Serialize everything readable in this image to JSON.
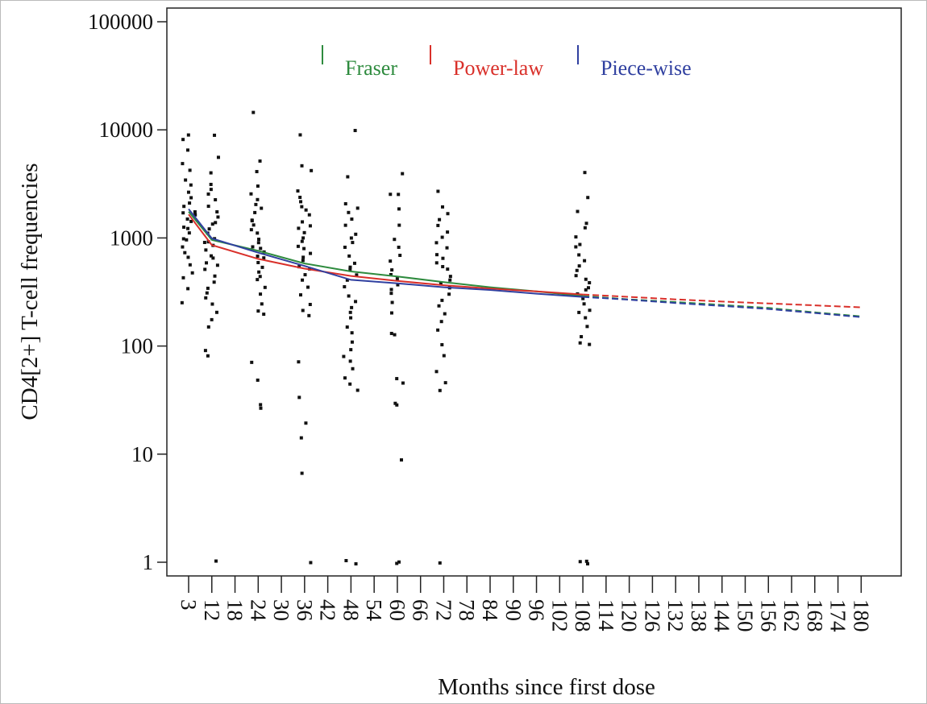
{
  "chart_data": {
    "type": "scatter",
    "title": "",
    "xlabel": "Months since first dose",
    "ylabel": "CD4[2+] T-cell frequencies",
    "x_scale": "categorical",
    "y_scale": "log",
    "ylim": [
      1,
      100000
    ],
    "x_ticks": [
      "3",
      "12",
      "18",
      "24",
      "30",
      "36",
      "42",
      "48",
      "54",
      "60",
      "66",
      "72",
      "78",
      "84",
      "90",
      "96",
      "102",
      "108",
      "114",
      "120",
      "126",
      "132",
      "138",
      "144",
      "150",
      "156",
      "162",
      "168",
      "174",
      "180"
    ],
    "y_ticks": [
      "1",
      "10",
      "100",
      "1000",
      "10000",
      "100000"
    ],
    "y_tick_values": [
      1,
      10,
      100,
      1000,
      10000,
      100000
    ],
    "grid": false,
    "legend": {
      "placement": "top",
      "entries": [
        {
          "name": "Fraser",
          "color": "#2e8b3e"
        },
        {
          "name": "Power-law",
          "color": "#d9302a"
        },
        {
          "name": "Piece-wise",
          "color": "#3040a0"
        }
      ]
    },
    "scatter_groups": [
      {
        "month": 3,
        "values": [
          9000,
          8000,
          6500,
          5000,
          4200,
          3500,
          3000,
          2600,
          2300,
          2100,
          1900,
          1800,
          1700,
          1600,
          1500,
          1400,
          1300,
          1200,
          1100,
          1000,
          950,
          850,
          750,
          650,
          560,
          480,
          420,
          330,
          250
        ]
      },
      {
        "month": 12,
        "values": [
          9000,
          5500,
          4000,
          3200,
          2800,
          2500,
          2200,
          2000,
          1800,
          1600,
          1400,
          1300,
          1200,
          1100,
          1000,
          950,
          900,
          850,
          800,
          700,
          650,
          600,
          550,
          500,
          450,
          400,
          350,
          300,
          270,
          250,
          200,
          170,
          150,
          90,
          80,
          1
        ]
      },
      {
        "month": 24,
        "values": [
          14000,
          5000,
          4000,
          3000,
          2600,
          2300,
          2100,
          1900,
          1700,
          1500,
          1400,
          1300,
          1200,
          1100,
          1000,
          900,
          850,
          800,
          750,
          700,
          650,
          600,
          550,
          500,
          450,
          400,
          350,
          300,
          250,
          210,
          200,
          70,
          50,
          28,
          26
        ]
      },
      {
        "month": 36,
        "values": [
          9000,
          4500,
          4200,
          2700,
          2400,
          2200,
          2000,
          1800,
          1600,
          1400,
          1300,
          1200,
          1100,
          1000,
          900,
          850,
          800,
          700,
          650,
          600,
          550,
          500,
          450,
          400,
          350,
          300,
          250,
          220,
          190,
          70,
          34,
          20,
          14,
          6.5,
          1
        ]
      },
      {
        "month": 48,
        "values": [
          10000,
          3700,
          2100,
          1900,
          1700,
          1500,
          1300,
          1100,
          1000,
          900,
          800,
          700,
          600,
          550,
          500,
          450,
          400,
          350,
          300,
          260,
          220,
          200,
          180,
          150,
          130,
          110,
          90,
          80,
          70,
          60,
          50,
          45,
          40,
          1,
          1
        ]
      },
      {
        "month": 60,
        "values": [
          4000,
          2600,
          2500,
          1800,
          1300,
          1000,
          800,
          700,
          600,
          500,
          450,
          420,
          380,
          330,
          300,
          250,
          200,
          130,
          130,
          50,
          46,
          30,
          28,
          8.7,
          1,
          1
        ]
      },
      {
        "month": 72,
        "values": [
          2700,
          1900,
          1700,
          1500,
          1300,
          1100,
          1000,
          900,
          800,
          700,
          650,
          600,
          550,
          500,
          450,
          400,
          380,
          350,
          300,
          270,
          240,
          200,
          170,
          140,
          100,
          80,
          60,
          45,
          40,
          1
        ]
      },
      {
        "month": 108,
        "values": [
          4000,
          2300,
          1700,
          1400,
          1200,
          1000,
          900,
          800,
          700,
          600,
          550,
          500,
          450,
          420,
          380,
          350,
          320,
          300,
          280,
          250,
          220,
          200,
          180,
          150,
          120,
          110,
          100,
          1,
          1,
          1
        ]
      }
    ],
    "series": [
      {
        "name": "Fraser",
        "color": "#2e8b3e",
        "x": [
          3,
          12,
          24,
          36,
          48,
          60,
          72,
          84,
          96,
          108,
          120,
          132,
          144,
          156,
          168,
          180
        ],
        "y": [
          1750,
          960,
          760,
          580,
          490,
          440,
          390,
          350,
          320,
          290,
          270,
          255,
          240,
          225,
          205,
          188
        ]
      },
      {
        "name": "Power-law",
        "color": "#d9302a",
        "x": [
          3,
          12,
          24,
          36,
          48,
          60,
          72,
          84,
          96,
          108,
          120,
          132,
          144,
          156,
          168,
          180
        ],
        "y": [
          1650,
          860,
          640,
          520,
          445,
          400,
          365,
          340,
          320,
          300,
          285,
          270,
          258,
          248,
          238,
          228
        ]
      },
      {
        "name": "Piece-wise",
        "color": "#3040a0",
        "x": [
          3,
          12,
          24,
          36,
          48,
          60,
          72,
          84,
          96,
          108,
          120,
          132,
          144,
          156,
          168,
          180
        ],
        "y": [
          1850,
          990,
          730,
          550,
          410,
          380,
          350,
          330,
          305,
          285,
          268,
          250,
          235,
          220,
          202,
          185
        ]
      }
    ],
    "fit_solid_until_month": 108
  }
}
